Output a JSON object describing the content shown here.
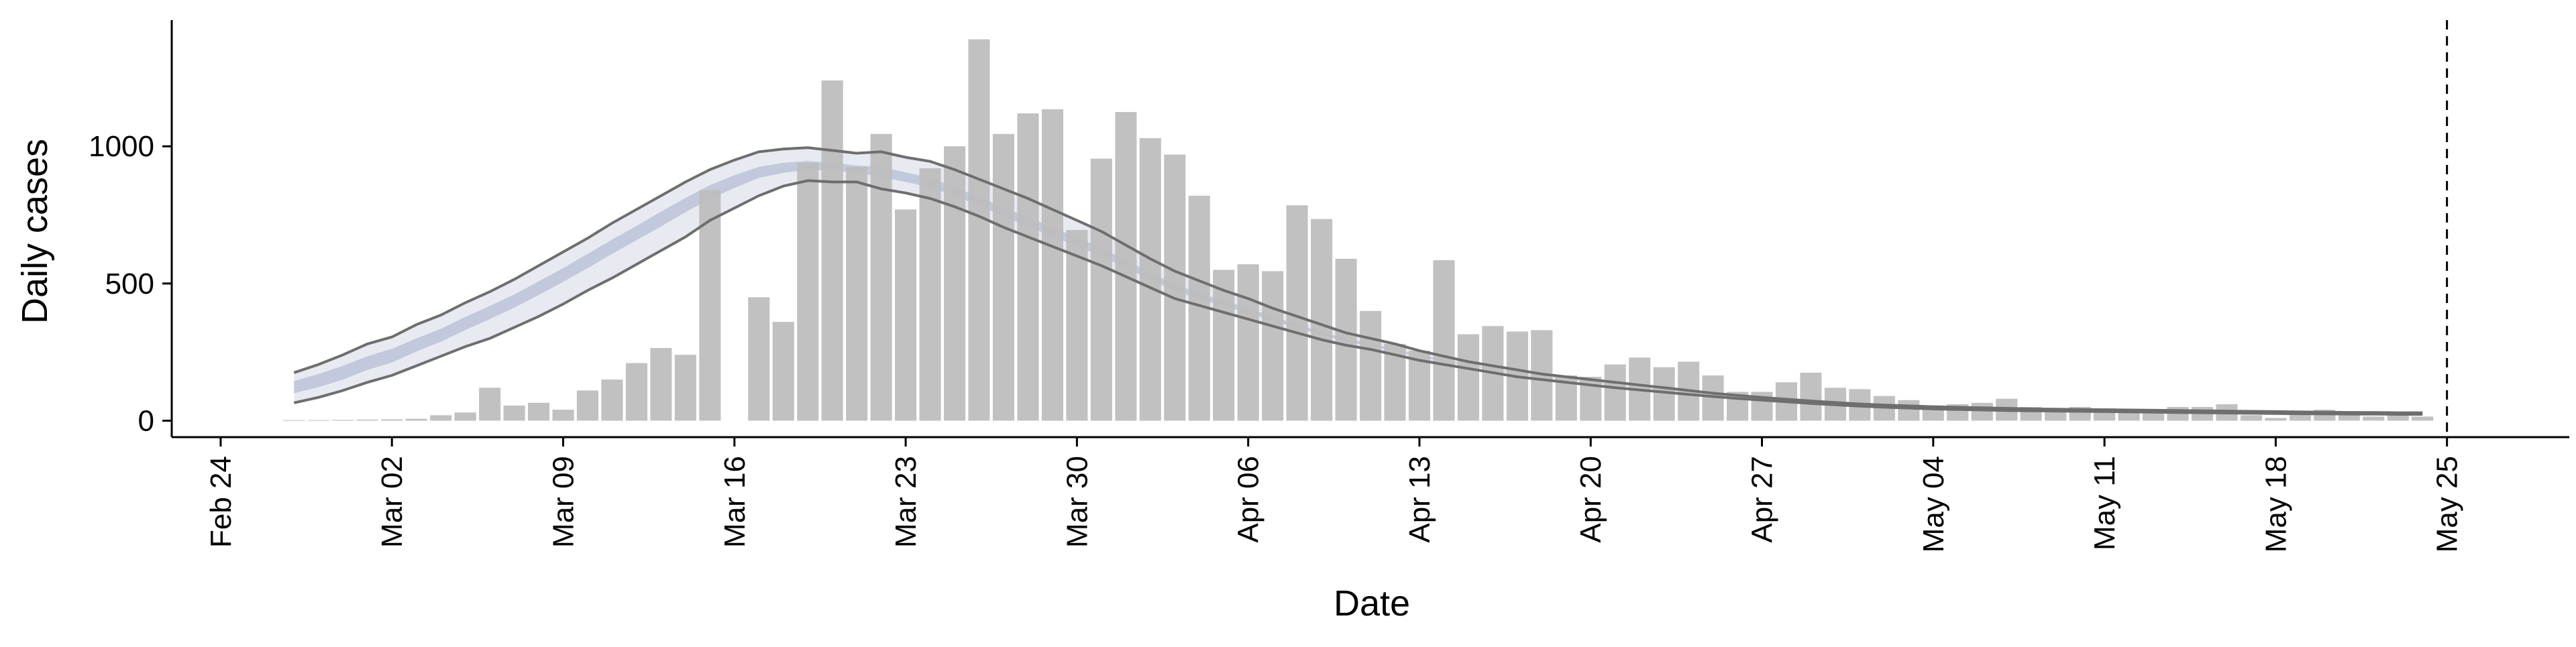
{
  "chart_data": {
    "type": "bar",
    "xlabel": "Date",
    "ylabel": "Daily cases",
    "xlim": [
      "2020-02-22",
      "2020-05-30"
    ],
    "ylim": [
      -60,
      1460
    ],
    "grid": false,
    "x_ticks": [
      {
        "date": "2020-02-24",
        "label": "Feb 24"
      },
      {
        "date": "2020-03-02",
        "label": "Mar 02"
      },
      {
        "date": "2020-03-09",
        "label": "Mar 09"
      },
      {
        "date": "2020-03-16",
        "label": "Mar 16"
      },
      {
        "date": "2020-03-23",
        "label": "Mar 23"
      },
      {
        "date": "2020-03-30",
        "label": "Mar 30"
      },
      {
        "date": "2020-04-06",
        "label": "Apr 06"
      },
      {
        "date": "2020-04-13",
        "label": "Apr 13"
      },
      {
        "date": "2020-04-20",
        "label": "Apr 20"
      },
      {
        "date": "2020-04-27",
        "label": "Apr 27"
      },
      {
        "date": "2020-05-04",
        "label": "May 04"
      },
      {
        "date": "2020-05-11",
        "label": "May 11"
      },
      {
        "date": "2020-05-18",
        "label": "May 18"
      },
      {
        "date": "2020-05-25",
        "label": "May 25"
      }
    ],
    "y_ticks": [
      0,
      500,
      1000
    ],
    "vline_date": "2020-05-25",
    "bars": {
      "start_date": "2020-02-27",
      "color": "#bebebe",
      "values": [
        2,
        2,
        3,
        4,
        5,
        7,
        20,
        30,
        120,
        55,
        65,
        40,
        110,
        150,
        210,
        265,
        240,
        840,
        0,
        450,
        360,
        940,
        1240,
        925,
        1045,
        770,
        920,
        1000,
        1390,
        1045,
        1120,
        1135,
        695,
        955,
        1125,
        1030,
        970,
        820,
        550,
        570,
        545,
        785,
        735,
        590,
        400,
        280,
        255,
        585,
        315,
        345,
        325,
        330,
        165,
        160,
        205,
        230,
        195,
        215,
        165,
        105,
        105,
        140,
        175,
        120,
        115,
        90,
        75,
        55,
        60,
        65,
        80,
        50,
        40,
        50,
        45,
        35,
        40,
        50,
        50,
        60,
        20,
        10,
        20,
        40,
        35,
        15,
        20,
        15
      ]
    },
    "model": {
      "start_date": "2020-02-27",
      "outer_color": "#e8eaf2",
      "inner_color": "#c2c9dc",
      "upper_line": [
        175,
        205,
        240,
        280,
        305,
        350,
        385,
        430,
        470,
        515,
        565,
        615,
        665,
        720,
        770,
        820,
        870,
        915,
        950,
        980,
        990,
        995,
        985,
        975,
        980,
        960,
        945,
        915,
        880,
        845,
        810,
        770,
        730,
        690,
        640,
        590,
        545,
        510,
        475,
        445,
        410,
        380,
        350,
        320,
        300,
        280,
        255,
        235,
        215,
        200,
        185,
        170,
        160,
        150,
        140,
        130,
        120,
        110,
        100,
        92,
        85,
        78,
        72,
        66,
        61,
        57,
        54,
        51,
        49,
        47,
        45,
        43,
        42,
        41,
        40,
        39,
        38,
        37,
        36,
        35,
        34,
        33,
        32,
        31,
        30,
        30,
        29,
        29
      ],
      "lower_line": [
        65,
        85,
        110,
        140,
        165,
        200,
        235,
        270,
        300,
        340,
        380,
        425,
        475,
        520,
        570,
        620,
        670,
        730,
        775,
        820,
        855,
        875,
        870,
        870,
        845,
        830,
        810,
        780,
        745,
        705,
        670,
        635,
        600,
        565,
        525,
        485,
        445,
        420,
        395,
        370,
        345,
        320,
        295,
        275,
        260,
        240,
        220,
        205,
        190,
        175,
        160,
        150,
        140,
        130,
        120,
        112,
        104,
        96,
        88,
        81,
        75,
        69,
        63,
        58,
        53,
        49,
        46,
        43,
        41,
        39,
        37,
        36,
        35,
        34,
        33,
        32,
        31,
        30,
        29,
        28,
        27,
        26,
        25,
        25,
        24,
        24,
        23,
        23
      ],
      "inner_upper": [
        145,
        170,
        200,
        235,
        262,
        300,
        335,
        378,
        418,
        460,
        508,
        556,
        608,
        660,
        710,
        762,
        812,
        858,
        895,
        925,
        940,
        946,
        940,
        930,
        925,
        905,
        885,
        852,
        815,
        778,
        742,
        705,
        668,
        630,
        585,
        540,
        497,
        466,
        437,
        410,
        380,
        352,
        324,
        299,
        282,
        262,
        240,
        222,
        205,
        190,
        175,
        162,
        152,
        142,
        132,
        123,
        114,
        105,
        96,
        88,
        82,
        75,
        69,
        63,
        58,
        54,
        51,
        48,
        46,
        44,
        42,
        41,
        40,
        39,
        38,
        37,
        36,
        35,
        34,
        33,
        32,
        31,
        30,
        29,
        28,
        28,
        27,
        27
      ],
      "inner_lower": [
        100,
        122,
        150,
        185,
        212,
        252,
        288,
        330,
        370,
        412,
        458,
        506,
        556,
        608,
        658,
        708,
        760,
        808,
        848,
        885,
        903,
        915,
        910,
        905,
        888,
        870,
        850,
        820,
        783,
        745,
        708,
        672,
        636,
        600,
        557,
        514,
        472,
        444,
        417,
        392,
        364,
        338,
        312,
        289,
        272,
        252,
        232,
        216,
        200,
        186,
        172,
        160,
        150,
        140,
        130,
        121,
        112,
        103,
        94,
        86,
        80,
        73,
        67,
        61,
        56,
        52,
        49,
        46,
        44,
        42,
        40,
        39,
        38,
        37,
        36,
        35,
        34,
        33,
        32,
        31,
        30,
        29,
        28,
        28,
        27,
        27,
        26,
        26
      ],
      "line_color": "#6e6e6e"
    }
  }
}
